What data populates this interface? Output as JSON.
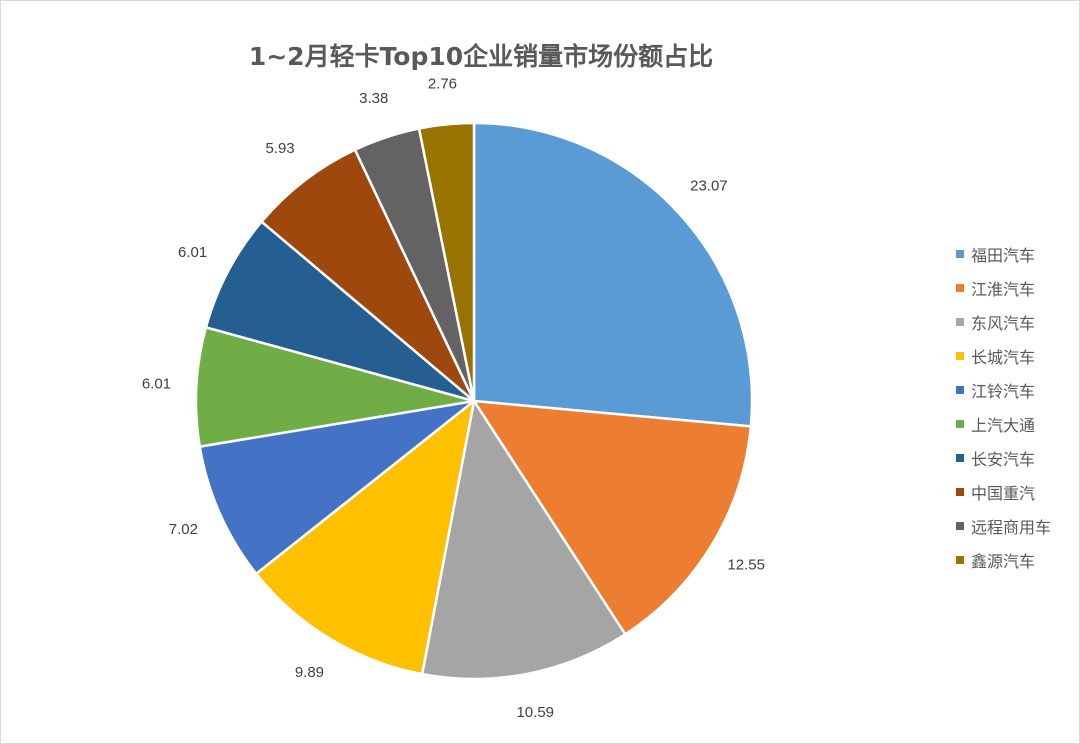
{
  "chart_data": {
    "type": "pie",
    "title": "1~2月轻卡Top10企业销量市场份额占比",
    "categories": [
      "福田汽车",
      "江淮汽车",
      "东风汽车",
      "长城汽车",
      "江铃汽车",
      "上汽大通",
      "长安汽车",
      "中国重汽",
      "远程商用车",
      "鑫源汽车"
    ],
    "values": [
      23.07,
      12.55,
      10.59,
      9.89,
      7.02,
      6.01,
      6.01,
      5.93,
      3.38,
      2.76
    ],
    "value_labels": [
      "23.07",
      "12.55",
      "10.59",
      "9.89",
      "7.02",
      "6.01",
      "6.01",
      "5.93",
      "3.38",
      "2.76"
    ],
    "colors": [
      "#5b9bd5",
      "#ed7d31",
      "#a5a5a5",
      "#ffc000",
      "#4472c4",
      "#70ad47",
      "#255e91",
      "#9e480e",
      "#636363",
      "#997300"
    ],
    "start_angle": "12 o'clock",
    "direction": "clockwise",
    "legend_position": "right"
  }
}
